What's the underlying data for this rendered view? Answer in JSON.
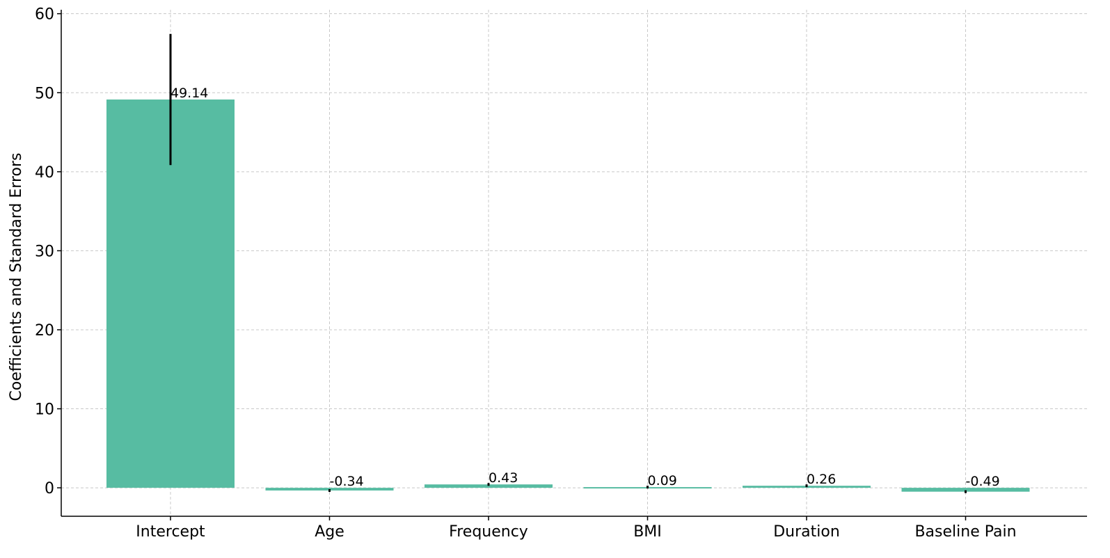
{
  "chart_data": {
    "type": "bar",
    "title": "",
    "xlabel": "",
    "ylabel": "Coefficients and Standard Errors",
    "categories": [
      "Intercept",
      "Age",
      "Frequency",
      "BMI",
      "Duration",
      "Baseline Pain"
    ],
    "values": [
      49.14,
      -0.34,
      0.43,
      0.09,
      0.26,
      -0.49
    ],
    "value_labels": [
      "49.14",
      "-0.34",
      "0.43",
      "0.09",
      "0.26",
      "-0.49"
    ],
    "errors": [
      8.3,
      0.1,
      0.1,
      0.1,
      0.1,
      0.1
    ],
    "ylim": [
      -3.6,
      60.5
    ],
    "yticks": [
      0,
      10,
      20,
      30,
      40,
      50,
      60
    ],
    "ytick_labels": [
      "0",
      "10",
      "20",
      "30",
      "40",
      "50",
      "60"
    ],
    "grid": true,
    "bar_color": "#57bca2",
    "error_color": "#000000"
  }
}
